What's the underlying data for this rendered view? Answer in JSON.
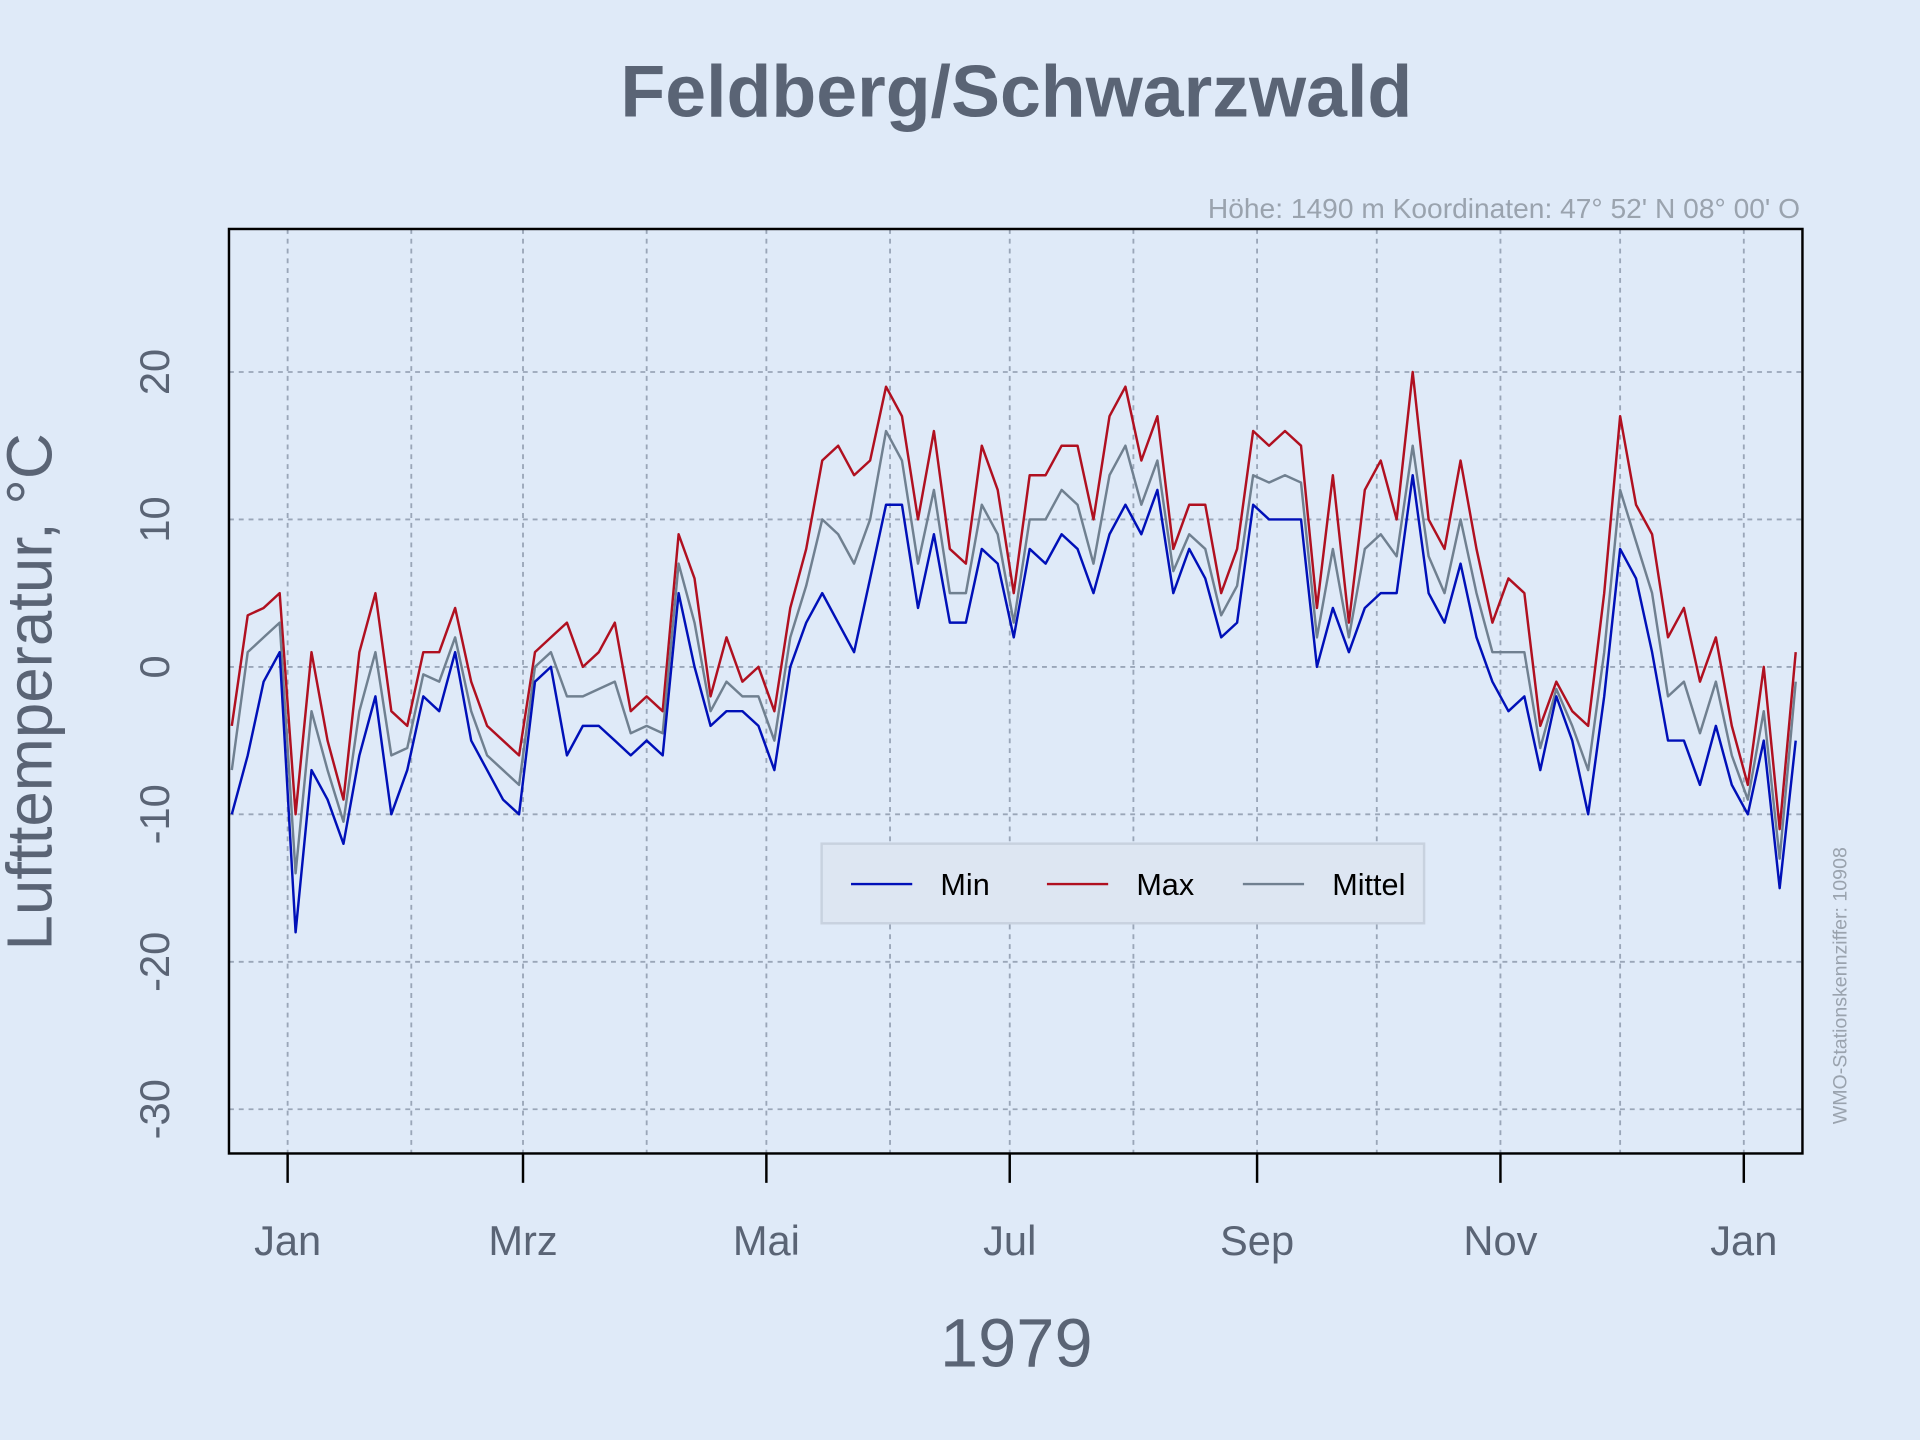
{
  "chart_data": {
    "type": "line",
    "title": "Feldberg/Schwarzwald",
    "subtitle": "Höhe: 1490 m   Koordinaten: 47° 52' N  08° 00' O",
    "xlabel": "1979",
    "ylabel": "Lufttemperatur, °C",
    "side_note": "WMO-Stationskennziffer: 10908",
    "x": [
      -14,
      -10,
      -6,
      -2,
      2,
      6,
      10,
      14,
      18,
      22,
      26,
      30,
      34,
      38,
      42,
      46,
      50,
      54,
      58,
      62,
      66,
      70,
      74,
      78,
      82,
      86,
      90,
      94,
      98,
      102,
      106,
      110,
      114,
      118,
      122,
      126,
      130,
      134,
      138,
      142,
      146,
      150,
      154,
      158,
      162,
      166,
      170,
      174,
      178,
      182,
      186,
      190,
      194,
      198,
      202,
      206,
      210,
      214,
      218,
      222,
      226,
      230,
      234,
      238,
      242,
      246,
      250,
      254,
      258,
      262,
      266,
      270,
      274,
      278,
      282,
      286,
      290,
      294,
      298,
      302,
      306,
      310,
      314,
      318,
      322,
      326,
      330,
      334,
      338,
      342,
      346,
      350,
      354,
      358,
      362,
      366,
      370,
      374,
      378
    ],
    "series": [
      {
        "name": "Min",
        "color": "#0010b8",
        "values": [
          -10,
          -6,
          -1,
          1,
          -18,
          -7,
          -9,
          -12,
          -6,
          -2,
          -10,
          -7,
          -2,
          -3,
          1,
          -5,
          -7,
          -9,
          -10,
          -1,
          0,
          -6,
          -4,
          -4,
          -5,
          -6,
          -5,
          -6,
          5,
          0,
          -4,
          -3,
          -3,
          -4,
          -7,
          0,
          3,
          5,
          3,
          1,
          6,
          11,
          11,
          4,
          9,
          3,
          3,
          8,
          7,
          2,
          8,
          7,
          9,
          8,
          5,
          9,
          11,
          9,
          12,
          5,
          8,
          6,
          2,
          3,
          11,
          10,
          10,
          10,
          0,
          4,
          1,
          4,
          5,
          5,
          13,
          5,
          3,
          7,
          2,
          -1,
          -3,
          -2,
          -7,
          -2,
          -5,
          -10,
          -2,
          8,
          6,
          1,
          -5,
          -5,
          -8,
          -4,
          -8,
          -10,
          -5,
          -15,
          -5
        ]
      },
      {
        "name": "Max",
        "color": "#b01020",
        "values": [
          -4,
          3.5,
          4,
          5,
          -10,
          1,
          -5,
          -9,
          1,
          5,
          -3,
          -4,
          1,
          1,
          4,
          -1,
          -4,
          -5,
          -6,
          1,
          2,
          3,
          0,
          1,
          3,
          -3,
          -2,
          -3,
          9,
          6,
          -2,
          2,
          -1,
          0,
          -3,
          4,
          8,
          14,
          15,
          13,
          14,
          19,
          17,
          10,
          16,
          8,
          7,
          15,
          12,
          5,
          13,
          13,
          15,
          15,
          10,
          17,
          19,
          14,
          17,
          8,
          11,
          11,
          5,
          8,
          16,
          15,
          16,
          15,
          4,
          13,
          3,
          12,
          14,
          10,
          20,
          10,
          8,
          14,
          8,
          3,
          6,
          5,
          -4,
          -1,
          -3,
          -4,
          5,
          17,
          11,
          9,
          2,
          4,
          -1,
          2,
          -4,
          -8,
          0,
          -11,
          1
        ]
      },
      {
        "name": "Mittel",
        "color": "#708090",
        "values": [
          -7,
          1,
          2,
          3,
          -14,
          -3,
          -7,
          -10.5,
          -3,
          1,
          -6,
          -5.5,
          -0.5,
          -1,
          2,
          -3,
          -6,
          -7,
          -8,
          0,
          1,
          -2,
          -2,
          -1.5,
          -1,
          -4.5,
          -4,
          -4.5,
          7,
          3,
          -3,
          -1,
          -2,
          -2,
          -5,
          2,
          5.5,
          10,
          9,
          7,
          10,
          16,
          14,
          7,
          12,
          5,
          5,
          11,
          9,
          3,
          10,
          10,
          12,
          11,
          7,
          13,
          15,
          11,
          14,
          6.5,
          9,
          8,
          3.5,
          5.5,
          13,
          12.5,
          13,
          12.5,
          2,
          8,
          2,
          8,
          9,
          7.5,
          15,
          7.5,
          5,
          10,
          5,
          1,
          1,
          1,
          -5.5,
          -1.5,
          -4,
          -7,
          1,
          12,
          8.5,
          5,
          -2,
          -1,
          -4.5,
          -1,
          -6,
          -9,
          -3,
          -13,
          -1
        ]
      }
    ],
    "xlim": [
      -14.7,
      379.7
    ],
    "ylim": [
      -33,
      29.7
    ],
    "yticks": [
      -30,
      -20,
      -10,
      0,
      10,
      20
    ],
    "xticks": [
      {
        "value": 0,
        "label": "Jan"
      },
      {
        "value": 59,
        "label": "Mrz"
      },
      {
        "value": 120,
        "label": "Mai"
      },
      {
        "value": 181,
        "label": "Jul"
      },
      {
        "value": 243,
        "label": "Sep"
      },
      {
        "value": 304,
        "label": "Nov"
      },
      {
        "value": 365,
        "label": "Jan"
      }
    ],
    "xgrid": [
      0,
      31,
      59,
      90,
      120,
      151,
      181,
      212,
      243,
      273,
      304,
      334,
      365
    ],
    "grid": true,
    "legend": "bottom"
  }
}
